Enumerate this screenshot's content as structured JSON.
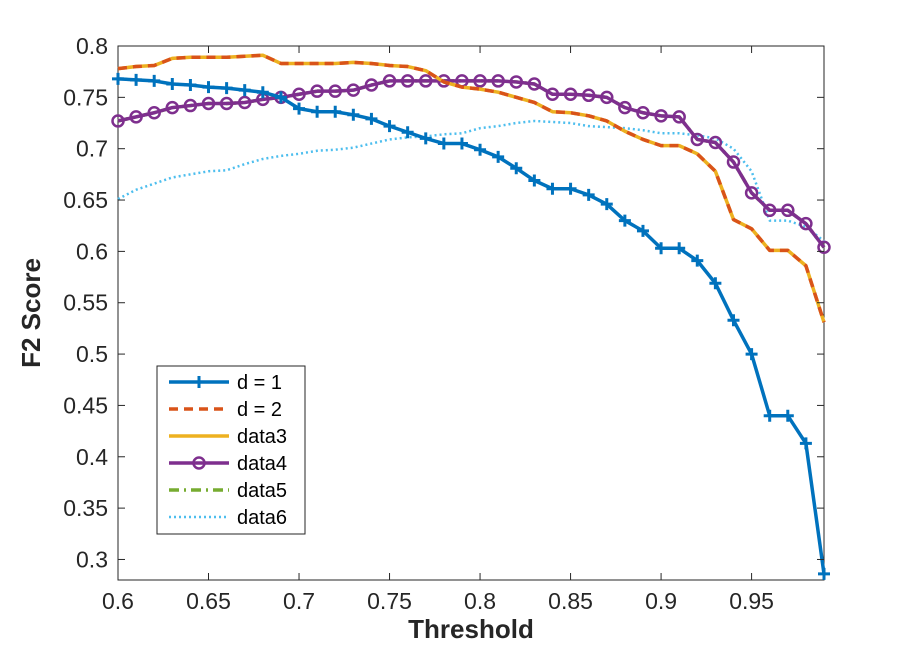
{
  "chart_data": {
    "type": "line",
    "xlabel": "Threshold",
    "ylabel": "F2 Score",
    "xlim": [
      0.6,
      0.99
    ],
    "ylim": [
      0.28,
      0.8
    ],
    "xticks": [
      0.6,
      0.65,
      0.7,
      0.75,
      0.8,
      0.85,
      0.9,
      0.95
    ],
    "xtick_labels": [
      "0.6",
      "0.65",
      "0.7",
      "0.75",
      "0.8",
      "0.85",
      "0.9",
      "0.95"
    ],
    "yticks": [
      0.3,
      0.35,
      0.4,
      0.45,
      0.5,
      0.55,
      0.6,
      0.65,
      0.7,
      0.75,
      0.8
    ],
    "ytick_labels": [
      "0.3",
      "0.35",
      "0.4",
      "0.45",
      "0.5",
      "0.55",
      "0.6",
      "0.65",
      "0.7",
      "0.75",
      "0.8"
    ],
    "grid": false,
    "legend_position": "bottom-left",
    "series": [
      {
        "name": "d = 1",
        "color": "#0072BD",
        "style": "solid",
        "marker": "plus",
        "x": [
          0.6,
          0.61,
          0.62,
          0.63,
          0.64,
          0.65,
          0.66,
          0.67,
          0.68,
          0.69,
          0.7,
          0.71,
          0.72,
          0.73,
          0.74,
          0.75,
          0.76,
          0.77,
          0.78,
          0.79,
          0.8,
          0.81,
          0.82,
          0.83,
          0.84,
          0.85,
          0.86,
          0.87,
          0.88,
          0.89,
          0.9,
          0.91,
          0.92,
          0.93,
          0.94,
          0.95,
          0.96,
          0.97,
          0.98,
          0.99
        ],
        "y": [
          0.768,
          0.767,
          0.766,
          0.763,
          0.762,
          0.76,
          0.759,
          0.757,
          0.755,
          0.75,
          0.739,
          0.736,
          0.736,
          0.733,
          0.729,
          0.722,
          0.716,
          0.71,
          0.705,
          0.705,
          0.699,
          0.692,
          0.681,
          0.669,
          0.661,
          0.661,
          0.655,
          0.646,
          0.63,
          0.62,
          0.603,
          0.603,
          0.591,
          0.569,
          0.533,
          0.5,
          0.44,
          0.44,
          0.413,
          0.286
        ]
      },
      {
        "name": "d = 2",
        "color": "#D95319",
        "style": "dashed",
        "marker": "none",
        "x": [
          0.6,
          0.61,
          0.62,
          0.63,
          0.64,
          0.65,
          0.66,
          0.67,
          0.68,
          0.69,
          0.7,
          0.71,
          0.72,
          0.73,
          0.74,
          0.75,
          0.76,
          0.77,
          0.78,
          0.79,
          0.8,
          0.81,
          0.82,
          0.83,
          0.84,
          0.85,
          0.86,
          0.87,
          0.88,
          0.89,
          0.9,
          0.91,
          0.92,
          0.93,
          0.94,
          0.95,
          0.96,
          0.97,
          0.98,
          0.99
        ],
        "y": [
          0.778,
          0.78,
          0.781,
          0.788,
          0.789,
          0.789,
          0.789,
          0.79,
          0.791,
          0.783,
          0.783,
          0.783,
          0.783,
          0.784,
          0.783,
          0.781,
          0.78,
          0.776,
          0.765,
          0.76,
          0.758,
          0.755,
          0.75,
          0.745,
          0.736,
          0.735,
          0.732,
          0.727,
          0.717,
          0.709,
          0.703,
          0.703,
          0.695,
          0.678,
          0.631,
          0.622,
          0.601,
          0.601,
          0.586,
          0.531
        ]
      },
      {
        "name": "data3",
        "color": "#EDB120",
        "style": "solid",
        "marker": "none",
        "x": [
          0.6,
          0.61,
          0.62,
          0.63,
          0.64,
          0.65,
          0.66,
          0.67,
          0.68,
          0.69,
          0.7,
          0.71,
          0.72,
          0.73,
          0.74,
          0.75,
          0.76,
          0.77,
          0.78,
          0.79,
          0.8,
          0.81,
          0.82,
          0.83,
          0.84,
          0.85,
          0.86,
          0.87,
          0.88,
          0.89,
          0.9,
          0.91,
          0.92,
          0.93,
          0.94,
          0.95,
          0.96,
          0.97,
          0.98,
          0.99
        ],
        "y": [
          0.778,
          0.78,
          0.781,
          0.788,
          0.789,
          0.789,
          0.789,
          0.79,
          0.791,
          0.783,
          0.783,
          0.783,
          0.783,
          0.784,
          0.783,
          0.781,
          0.78,
          0.776,
          0.765,
          0.76,
          0.758,
          0.755,
          0.75,
          0.745,
          0.736,
          0.735,
          0.732,
          0.727,
          0.717,
          0.709,
          0.703,
          0.703,
          0.695,
          0.678,
          0.631,
          0.622,
          0.601,
          0.601,
          0.586,
          0.531
        ]
      },
      {
        "name": "data4",
        "color": "#7E2F8E",
        "style": "solid",
        "marker": "circle",
        "x": [
          0.6,
          0.61,
          0.62,
          0.63,
          0.64,
          0.65,
          0.66,
          0.67,
          0.68,
          0.69,
          0.7,
          0.71,
          0.72,
          0.73,
          0.74,
          0.75,
          0.76,
          0.77,
          0.78,
          0.79,
          0.8,
          0.81,
          0.82,
          0.83,
          0.84,
          0.85,
          0.86,
          0.87,
          0.88,
          0.89,
          0.9,
          0.91,
          0.92,
          0.93,
          0.94,
          0.95,
          0.96,
          0.97,
          0.98,
          0.99
        ],
        "y": [
          0.727,
          0.731,
          0.735,
          0.74,
          0.742,
          0.744,
          0.744,
          0.745,
          0.748,
          0.75,
          0.753,
          0.756,
          0.756,
          0.757,
          0.762,
          0.766,
          0.766,
          0.766,
          0.766,
          0.766,
          0.766,
          0.766,
          0.765,
          0.763,
          0.753,
          0.753,
          0.752,
          0.75,
          0.74,
          0.735,
          0.732,
          0.731,
          0.709,
          0.706,
          0.687,
          0.657,
          0.64,
          0.64,
          0.627,
          0.604
        ]
      },
      {
        "name": "data5",
        "color": "#77AC30",
        "style": "dashdot",
        "marker": "none",
        "x": [
          0.6,
          0.61,
          0.62,
          0.63,
          0.64,
          0.65,
          0.66,
          0.67,
          0.68,
          0.69,
          0.7,
          0.71,
          0.72,
          0.73,
          0.74,
          0.75,
          0.76,
          0.77,
          0.78,
          0.79,
          0.8,
          0.81,
          0.82,
          0.83,
          0.84,
          0.85,
          0.86,
          0.87,
          0.88,
          0.89,
          0.9,
          0.91,
          0.92,
          0.93,
          0.94,
          0.95,
          0.96,
          0.97,
          0.98,
          0.99
        ],
        "y": [
          0.727,
          0.731,
          0.735,
          0.74,
          0.742,
          0.744,
          0.744,
          0.745,
          0.748,
          0.75,
          0.753,
          0.756,
          0.756,
          0.757,
          0.762,
          0.766,
          0.766,
          0.766,
          0.766,
          0.766,
          0.766,
          0.766,
          0.765,
          0.763,
          0.753,
          0.753,
          0.752,
          0.75,
          0.74,
          0.735,
          0.732,
          0.731,
          0.709,
          0.706,
          0.687,
          0.657,
          0.64,
          0.64,
          0.627,
          0.604
        ]
      },
      {
        "name": "data6",
        "color": "#4DBEEE",
        "style": "dotted",
        "marker": "none",
        "x": [
          0.6,
          0.61,
          0.62,
          0.63,
          0.64,
          0.65,
          0.66,
          0.67,
          0.68,
          0.69,
          0.7,
          0.71,
          0.72,
          0.73,
          0.74,
          0.75,
          0.76,
          0.77,
          0.78,
          0.79,
          0.8,
          0.81,
          0.82,
          0.83,
          0.84,
          0.85,
          0.86,
          0.87,
          0.88,
          0.89,
          0.9,
          0.91,
          0.92,
          0.93,
          0.94,
          0.95,
          0.96,
          0.97,
          0.98,
          0.99
        ],
        "y": [
          0.651,
          0.66,
          0.666,
          0.672,
          0.675,
          0.678,
          0.679,
          0.685,
          0.69,
          0.693,
          0.695,
          0.698,
          0.699,
          0.701,
          0.705,
          0.709,
          0.711,
          0.712,
          0.714,
          0.715,
          0.72,
          0.722,
          0.725,
          0.727,
          0.726,
          0.725,
          0.722,
          0.721,
          0.72,
          0.718,
          0.715,
          0.715,
          0.713,
          0.71,
          0.7,
          0.678,
          0.63,
          0.63,
          0.624,
          0.61
        ]
      }
    ]
  }
}
